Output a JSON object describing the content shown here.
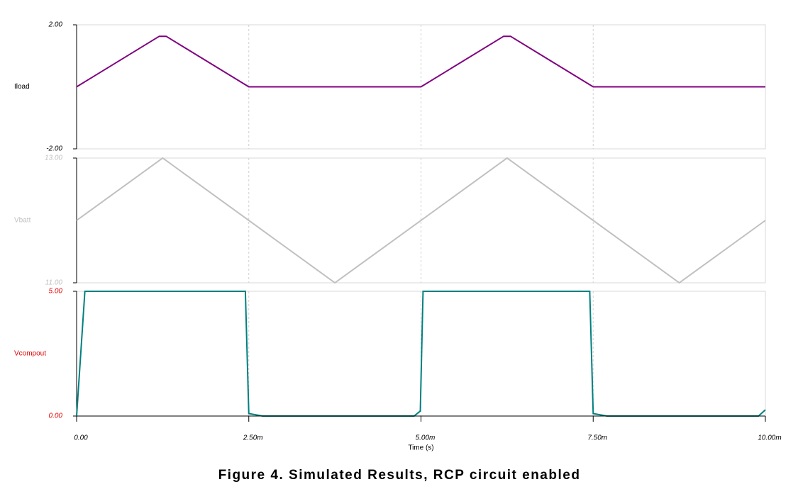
{
  "chart_data": [
    {
      "type": "line",
      "x": [
        0,
        0.0012,
        0.0013,
        0.0025,
        0.005,
        0.0062,
        0.0063,
        0.0075,
        0.01
      ],
      "series": [
        {
          "name": "Iload",
          "color": "#800080",
          "values": [
            0,
            1.63,
            1.63,
            0,
            0,
            1.63,
            1.63,
            0,
            0
          ]
        }
      ],
      "xlim": [
        0,
        0.01
      ],
      "ylim": [
        -2,
        2
      ],
      "yticks": [
        {
          "value": -2,
          "label": "-2.00"
        },
        {
          "value": 2,
          "label": "2.00"
        }
      ],
      "axis_color": "#000000",
      "grid": true
    },
    {
      "type": "line",
      "x": [
        0,
        0.00125,
        0.00375,
        0.00625,
        0.00875,
        0.01
      ],
      "series": [
        {
          "name": "Vbatt",
          "color": "#c0c0c0",
          "values": [
            12,
            13,
            11,
            13,
            11,
            12
          ]
        }
      ],
      "xlim": [
        0,
        0.01
      ],
      "ylim": [
        11,
        13
      ],
      "yticks": [
        {
          "value": 11,
          "label": "11.00"
        },
        {
          "value": 13,
          "label": "13.00"
        }
      ],
      "axis_color": "#c0c0c0",
      "grid": true
    },
    {
      "type": "line",
      "x": [
        0,
        0.00012,
        0.00245,
        0.0025,
        0.0027,
        0.0049,
        0.00499,
        0.00503,
        0.00745,
        0.0075,
        0.0077,
        0.0099,
        0.01
      ],
      "series": [
        {
          "name": "Vcompout",
          "color": "#008080",
          "values": [
            0,
            5,
            5,
            0.1,
            0,
            0,
            0.2,
            5,
            5,
            0.1,
            0,
            0,
            0.25
          ]
        }
      ],
      "xlim": [
        0,
        0.01
      ],
      "ylim": [
        0,
        5
      ],
      "yticks": [
        {
          "value": 0,
          "label": "0.00"
        },
        {
          "value": 5,
          "label": "5.00"
        }
      ],
      "xticks": [
        {
          "value": 0,
          "label": "0.00"
        },
        {
          "value": 0.0025,
          "label": "2.50m"
        },
        {
          "value": 0.005,
          "label": "5.00m"
        },
        {
          "value": 0.0075,
          "label": "7.50m"
        },
        {
          "value": 0.01,
          "label": "10.00m"
        }
      ],
      "xlabel": "Time (s)",
      "axis_color": "#e00000",
      "grid": true
    }
  ],
  "caption": "Figure 4. Simulated Results, RCP circuit enabled"
}
